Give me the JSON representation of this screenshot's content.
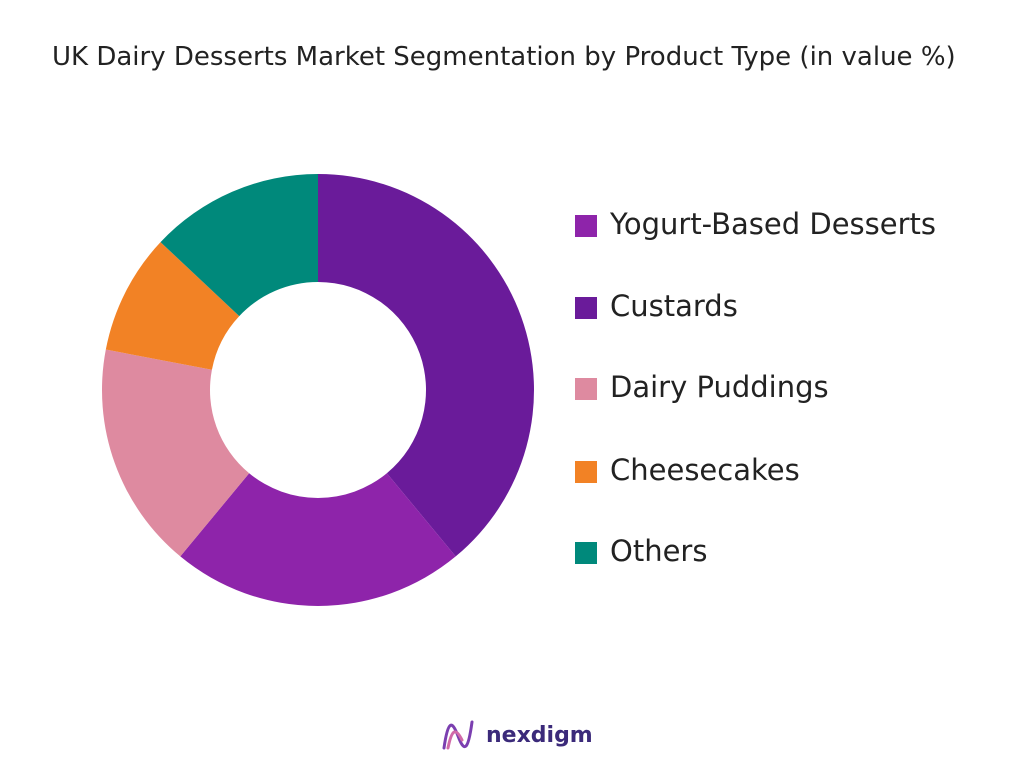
{
  "chart_data": {
    "type": "pie",
    "title": "UK Dairy Desserts Market Segmentation by Product Type (in value %)",
    "categories": [
      "Yogurt-Based Desserts",
      "Custards",
      "Dairy Puddings",
      "Cheesecakes",
      "Others"
    ],
    "values": [
      22,
      39,
      17,
      9,
      13
    ],
    "colors": [
      "#8e24aa",
      "#6a1b9a",
      "#de8aa0",
      "#f28225",
      "#00897b"
    ],
    "legend": "right"
  },
  "brand": "nexdigm"
}
